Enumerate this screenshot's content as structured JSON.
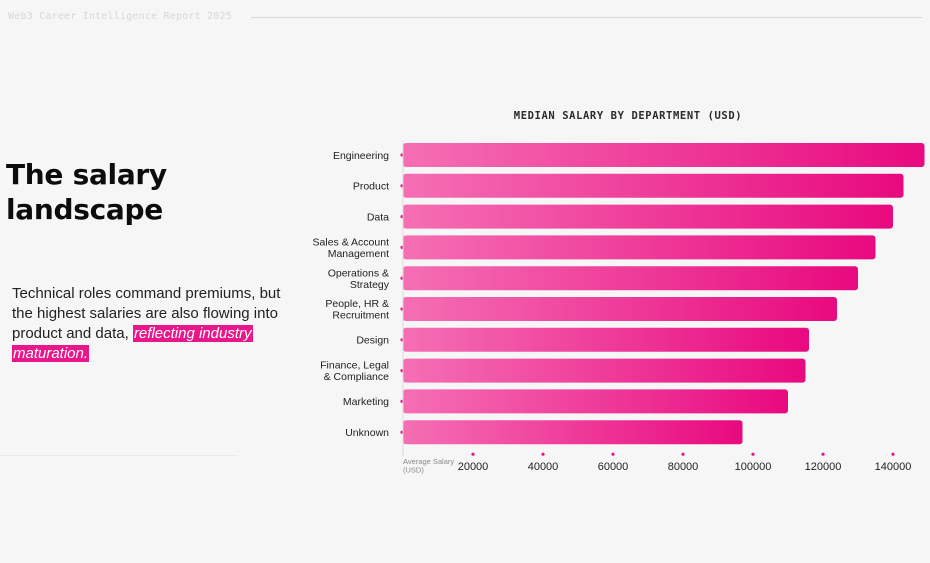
{
  "report": {
    "title": "Web3 Career Intelligence Report 2025"
  },
  "intro": {
    "headline_line1": "The salary",
    "headline_line2": "landscape",
    "body": "Technical roles command premiums, but the highest salaries are also flowing into product and data,",
    "highlight": "reflecting industry maturation."
  },
  "colors": {
    "accent": "#e8178a",
    "bar_start": "#f56fb4",
    "bar_end": "#e8097f"
  },
  "chart_data": {
    "type": "bar",
    "orientation": "horizontal",
    "title": "MEDIAN SALARY BY DEPARTMENT (USD)",
    "xlabel_lines": [
      "Average Salary",
      "(USD)"
    ],
    "xlim": [
      0,
      150000
    ],
    "xticks": [
      20000,
      40000,
      60000,
      80000,
      100000,
      120000,
      140000
    ],
    "xtick_labels": [
      "20000",
      "40000",
      "60000",
      "80000",
      "100000",
      "120000",
      "140000"
    ],
    "grid": false,
    "categories": [
      [
        "Engineering"
      ],
      [
        "Product"
      ],
      [
        "Data"
      ],
      [
        "Sales & Account",
        "Management"
      ],
      [
        "Operations &",
        "Strategy"
      ],
      [
        "People, HR &",
        "Recruitment"
      ],
      [
        "Design"
      ],
      [
        "Finance, Legal",
        "& Compliance"
      ],
      [
        "Marketing"
      ],
      [
        "Unknown"
      ]
    ],
    "values": [
      149000,
      143000,
      140000,
      135000,
      130000,
      124000,
      116000,
      115000,
      110000,
      97000
    ]
  }
}
